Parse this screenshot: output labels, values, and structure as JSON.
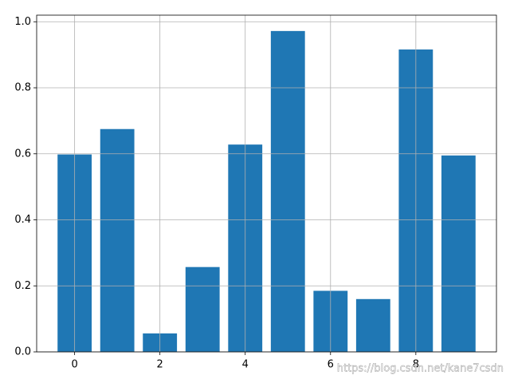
{
  "chart_data": {
    "type": "bar",
    "x": [
      0,
      1,
      2,
      3,
      4,
      5,
      6,
      7,
      8,
      9
    ],
    "values": [
      0.598,
      0.675,
      0.056,
      0.257,
      0.628,
      0.972,
      0.185,
      0.16,
      0.916,
      0.595
    ],
    "color": "#1f77b4",
    "bar_width": 0.8,
    "xlim": [
      -0.89,
      9.89
    ],
    "xticks": [
      0,
      2,
      4,
      6,
      8
    ],
    "ylim": [
      0,
      1.02
    ],
    "yticks": [
      {
        "value": 0,
        "label": "0.0"
      },
      {
        "value": 0.2,
        "label": "0.2"
      },
      {
        "value": 0.4,
        "label": "0.4"
      },
      {
        "value": 0.6,
        "label": "0.6"
      },
      {
        "value": 0.8,
        "label": "0.8"
      },
      {
        "value": 1,
        "label": "1.0"
      }
    ],
    "grid": true,
    "watermark": "https://blog.csdn.net/kane7csdn"
  }
}
